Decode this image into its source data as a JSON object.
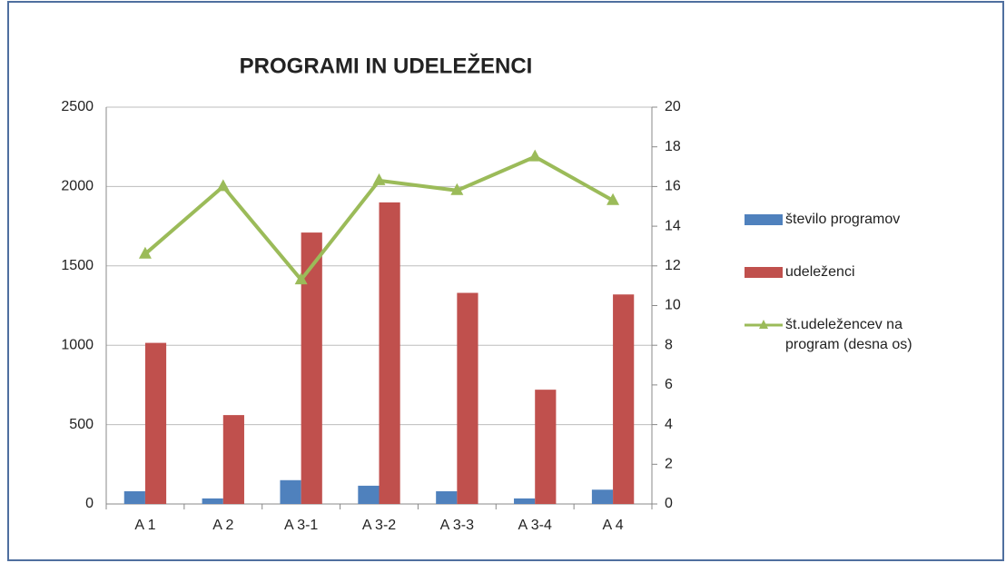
{
  "chart_data": {
    "type": "bar",
    "title": "PROGRAMI IN UDELEŽENCI",
    "categories": [
      "A 1",
      "A 2",
      "A 3-1",
      "A 3-2",
      "A 3-3",
      "A 3-4",
      "A 4"
    ],
    "series": [
      {
        "name": "število programov",
        "color": "#4f81bd",
        "type": "bar",
        "values": [
          80,
          35,
          150,
          115,
          80,
          35,
          90
        ]
      },
      {
        "name": "udeleženci",
        "color": "#c0504d",
        "type": "bar",
        "values": [
          1015,
          560,
          1710,
          1900,
          1330,
          720,
          1320
        ]
      },
      {
        "name": "št.udeležencev na program (desna os)",
        "color": "#9bbb59",
        "type": "line",
        "axis": "y2",
        "values": [
          12.6,
          16,
          11.3,
          16.3,
          15.8,
          17.5,
          15.3
        ]
      }
    ],
    "ylim": [
      0,
      2500
    ],
    "yticks": [
      0,
      500,
      1000,
      1500,
      2000,
      2500
    ],
    "y2lim": [
      0,
      20
    ],
    "y2ticks": [
      0,
      2,
      4,
      6,
      8,
      10,
      12,
      14,
      16,
      18,
      20
    ],
    "grid": true,
    "legend": "right"
  }
}
